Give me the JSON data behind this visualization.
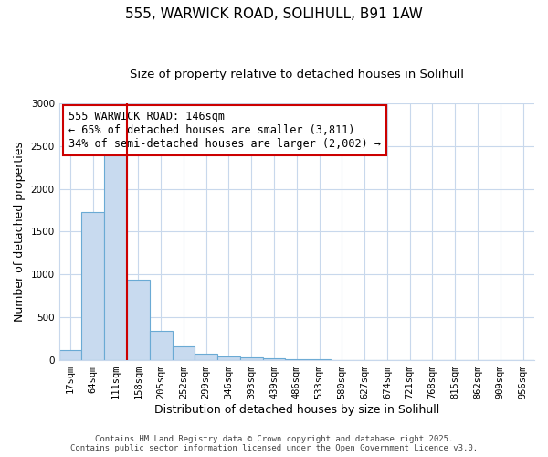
{
  "title1": "555, WARWICK ROAD, SOLIHULL, B91 1AW",
  "title2": "Size of property relative to detached houses in Solihull",
  "xlabel": "Distribution of detached houses by size in Solihull",
  "ylabel": "Number of detached properties",
  "categories": [
    "17sqm",
    "64sqm",
    "111sqm",
    "158sqm",
    "205sqm",
    "252sqm",
    "299sqm",
    "346sqm",
    "393sqm",
    "439sqm",
    "486sqm",
    "533sqm",
    "580sqm",
    "627sqm",
    "674sqm",
    "721sqm",
    "768sqm",
    "815sqm",
    "862sqm",
    "909sqm",
    "956sqm"
  ],
  "values": [
    120,
    1730,
    2420,
    940,
    340,
    165,
    80,
    45,
    30,
    20,
    10,
    7,
    3,
    0,
    0,
    0,
    0,
    0,
    0,
    0,
    0
  ],
  "bar_color": "#c8daef",
  "bar_edge_color": "#6aaad4",
  "bar_width": 1.0,
  "ylim": [
    0,
    3000
  ],
  "yticks": [
    0,
    500,
    1000,
    1500,
    2000,
    2500,
    3000
  ],
  "property_label": "555 WARWICK ROAD: 146sqm",
  "annotation_line1": "← 65% of detached houses are smaller (3,811)",
  "annotation_line2": "34% of semi-detached houses are larger (2,002) →",
  "annotation_box_color": "#cc0000",
  "vline_color": "#cc0000",
  "vline_x": 2.5,
  "footer1": "Contains HM Land Registry data © Crown copyright and database right 2025.",
  "footer2": "Contains public sector information licensed under the Open Government Licence v3.0.",
  "background_color": "#ffffff",
  "grid_color": "#c8d8ec",
  "title_fontsize": 11,
  "subtitle_fontsize": 9.5,
  "axis_label_fontsize": 9,
  "tick_fontsize": 7.5,
  "footer_fontsize": 6.5,
  "annotation_fontsize": 8.5
}
